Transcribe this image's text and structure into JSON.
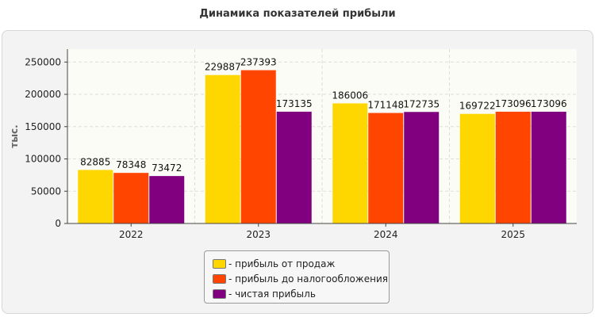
{
  "chart_data": {
    "type": "bar",
    "title": "Динамика показателей прибыли",
    "ylabel": "тыс.",
    "xlabel": "",
    "ylim": [
      0,
      270000
    ],
    "yticks": [
      0,
      50000,
      100000,
      150000,
      200000,
      250000
    ],
    "ytick_labels": [
      "0",
      "50000",
      "100000",
      "150000",
      "200000",
      "250000"
    ],
    "categories": [
      "2022",
      "2023",
      "2024",
      "2025"
    ],
    "grid": true,
    "legend_position": "bottom",
    "series": [
      {
        "name": "прибыль от продаж",
        "legend_label": "- прибыль от продаж",
        "color": "#FFD700",
        "values": [
          82885,
          229887,
          186006,
          169722
        ],
        "labels": [
          "82885",
          "229887",
          "186006",
          "169722"
        ]
      },
      {
        "name": "прибыль до налогообложения",
        "legend_label": "- прибыль до налогообложения",
        "color": "#FF4500",
        "values": [
          78348,
          237393,
          171148,
          173096
        ],
        "labels": [
          "78348",
          "237393",
          "171148",
          "173096"
        ]
      },
      {
        "name": "чистая прибыль",
        "legend_label": "- чистая прибыль",
        "color": "#800080",
        "values": [
          73472,
          173135,
          172735,
          173096
        ],
        "labels": [
          "73472",
          "173135",
          "172735",
          "173096"
        ]
      }
    ]
  }
}
